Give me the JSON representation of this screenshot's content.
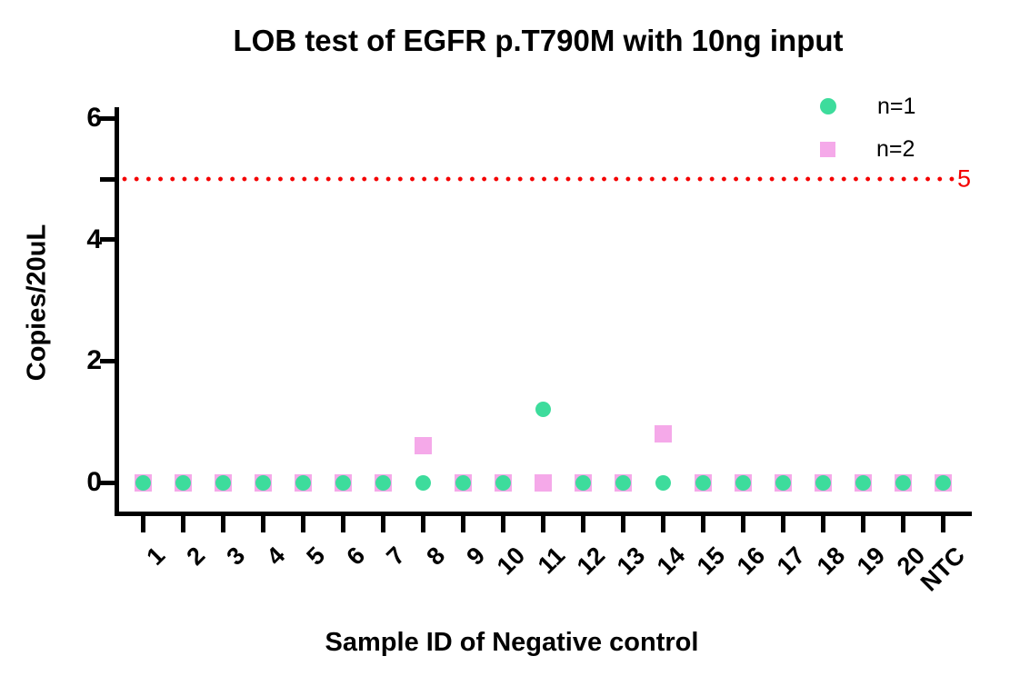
{
  "chart_data": {
    "type": "scatter",
    "title": "LOB test of EGFR p.T790M with 10ng input",
    "xlabel": "Sample ID of Negative control",
    "ylabel": "Copies/20uL",
    "categories": [
      "1",
      "2",
      "3",
      "4",
      "5",
      "6",
      "7",
      "8",
      "9",
      "10",
      "11",
      "12",
      "13",
      "14",
      "15",
      "16",
      "17",
      "18",
      "19",
      "20",
      "NTC"
    ],
    "series": [
      {
        "name": "n=1",
        "marker": "circle",
        "color": "#3DDC9C",
        "values": [
          0,
          0,
          0,
          0,
          0,
          0,
          0,
          0,
          0,
          0,
          1.2,
          0,
          0,
          0,
          0,
          0,
          0,
          0,
          0,
          0,
          0
        ]
      },
      {
        "name": "n=2",
        "marker": "square",
        "color": "#F5A9E9",
        "values": [
          0,
          0,
          0,
          0,
          0,
          0,
          0,
          0.6,
          0,
          0,
          0,
          0,
          0,
          0.8,
          0,
          0,
          0,
          0,
          0,
          0,
          0
        ]
      }
    ],
    "threshold": {
      "value": 5,
      "label": "5",
      "color": "#F40000",
      "style": "dotted"
    },
    "yticks": [
      0,
      2,
      4,
      6
    ],
    "ylim": [
      0,
      6.2
    ],
    "axis_color": "#000000",
    "grid": false,
    "legend_position": "top-right"
  }
}
